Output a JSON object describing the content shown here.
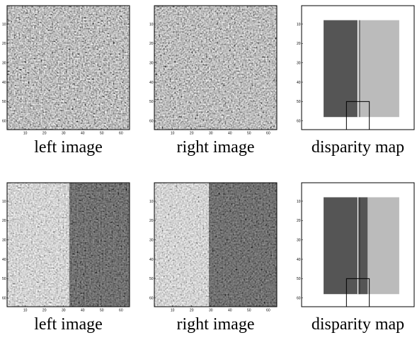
{
  "panels": [
    {
      "caption": "left image",
      "kind": "noise",
      "row": 0
    },
    {
      "caption": "right image",
      "kind": "noise",
      "row": 0
    },
    {
      "caption": "disparity map",
      "kind": "map",
      "row": 0
    },
    {
      "caption": "left image",
      "kind": "noise-split",
      "row": 1
    },
    {
      "caption": "right image",
      "kind": "noise-split",
      "row": 1
    },
    {
      "caption": "disparity map",
      "kind": "map",
      "row": 1
    }
  ],
  "axes": {
    "xticks": [
      10,
      20,
      30,
      40,
      50,
      60
    ],
    "yticks": [
      10,
      20,
      30,
      40,
      50,
      60
    ],
    "xlim": [
      0.5,
      64.5
    ],
    "ylim": [
      0.5,
      64.5
    ]
  }
}
